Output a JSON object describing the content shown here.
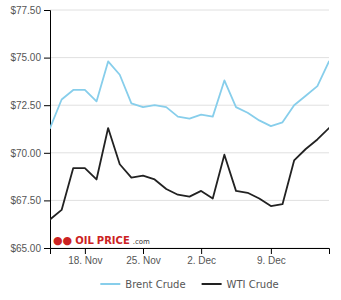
{
  "chart_data": {
    "type": "line",
    "categories": [
      null,
      null,
      null,
      "18. Nov",
      null,
      null,
      null,
      null,
      "25. Nov",
      null,
      null,
      null,
      null,
      "2. Dec",
      null,
      null,
      null,
      null,
      null,
      "9. Dec",
      null,
      null,
      null,
      null,
      null
    ],
    "series": [
      {
        "name": "Brent Crude",
        "color": "#87CEEB",
        "values": [
          71.3,
          72.8,
          73.3,
          73.3,
          72.7,
          74.8,
          74.1,
          72.6,
          72.4,
          72.5,
          72.4,
          71.9,
          71.8,
          72.0,
          71.9,
          73.8,
          72.4,
          72.1,
          71.7,
          71.4,
          71.6,
          72.5,
          73.0,
          73.5,
          74.8
        ]
      },
      {
        "name": "WTI Crude",
        "color": "#222222",
        "values": [
          66.5,
          67.0,
          69.2,
          69.2,
          68.6,
          71.3,
          69.4,
          68.7,
          68.8,
          68.6,
          68.1,
          67.8,
          67.7,
          68.0,
          67.6,
          69.9,
          68.0,
          67.9,
          67.6,
          67.2,
          67.3,
          69.6,
          70.2,
          70.7,
          71.3
        ]
      }
    ],
    "ylim": [
      65.0,
      77.5
    ],
    "yticks": [
      {
        "value": 65.0,
        "label": "$65.00"
      },
      {
        "value": 67.5,
        "label": "$67.50"
      },
      {
        "value": 70.0,
        "label": "$70.00"
      },
      {
        "value": 72.5,
        "label": "$72.50"
      },
      {
        "value": 75.0,
        "label": "$75.00"
      },
      {
        "value": 77.5,
        "label": "$77.50"
      }
    ],
    "grid": true,
    "legend": "bottom",
    "annotations": [
      {
        "text": "●●",
        "color": "#cc2222"
      },
      {
        "text": "OIL",
        "color": "#cc2222"
      },
      {
        "text": "PRICE",
        "color": "#cc2222"
      },
      {
        "text": ".com",
        "color": "#333333"
      }
    ]
  }
}
